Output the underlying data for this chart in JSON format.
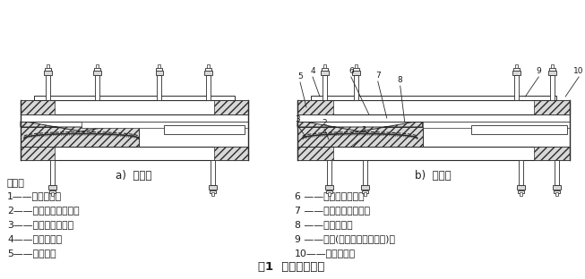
{
  "title": "图1  多向活动支座",
  "subtitle_a": "a)  纵桥向",
  "subtitle_b": "b)  横桥向",
  "note_header": "说明：",
  "left_labels": [
    "1——下支座板；",
    "2——球面非金属滑板；",
    "3——球面不锈钢板；",
    "4——上支座板；",
    "5——密封环；"
  ],
  "right_labels": [
    "6 ——平面不锈钢板；",
    "7 ——平面非金属滑板；",
    "8 ——球冠衬板；",
    "9 ——锚栓(螺栓、套筒和螺杆)；",
    "10——防尘围板。"
  ],
  "bg_color": "#ffffff",
  "line_color": "#2a2a2a",
  "text_color": "#1a1a1a",
  "gray_fill": "#d8d8d8",
  "white_fill": "#ffffff"
}
